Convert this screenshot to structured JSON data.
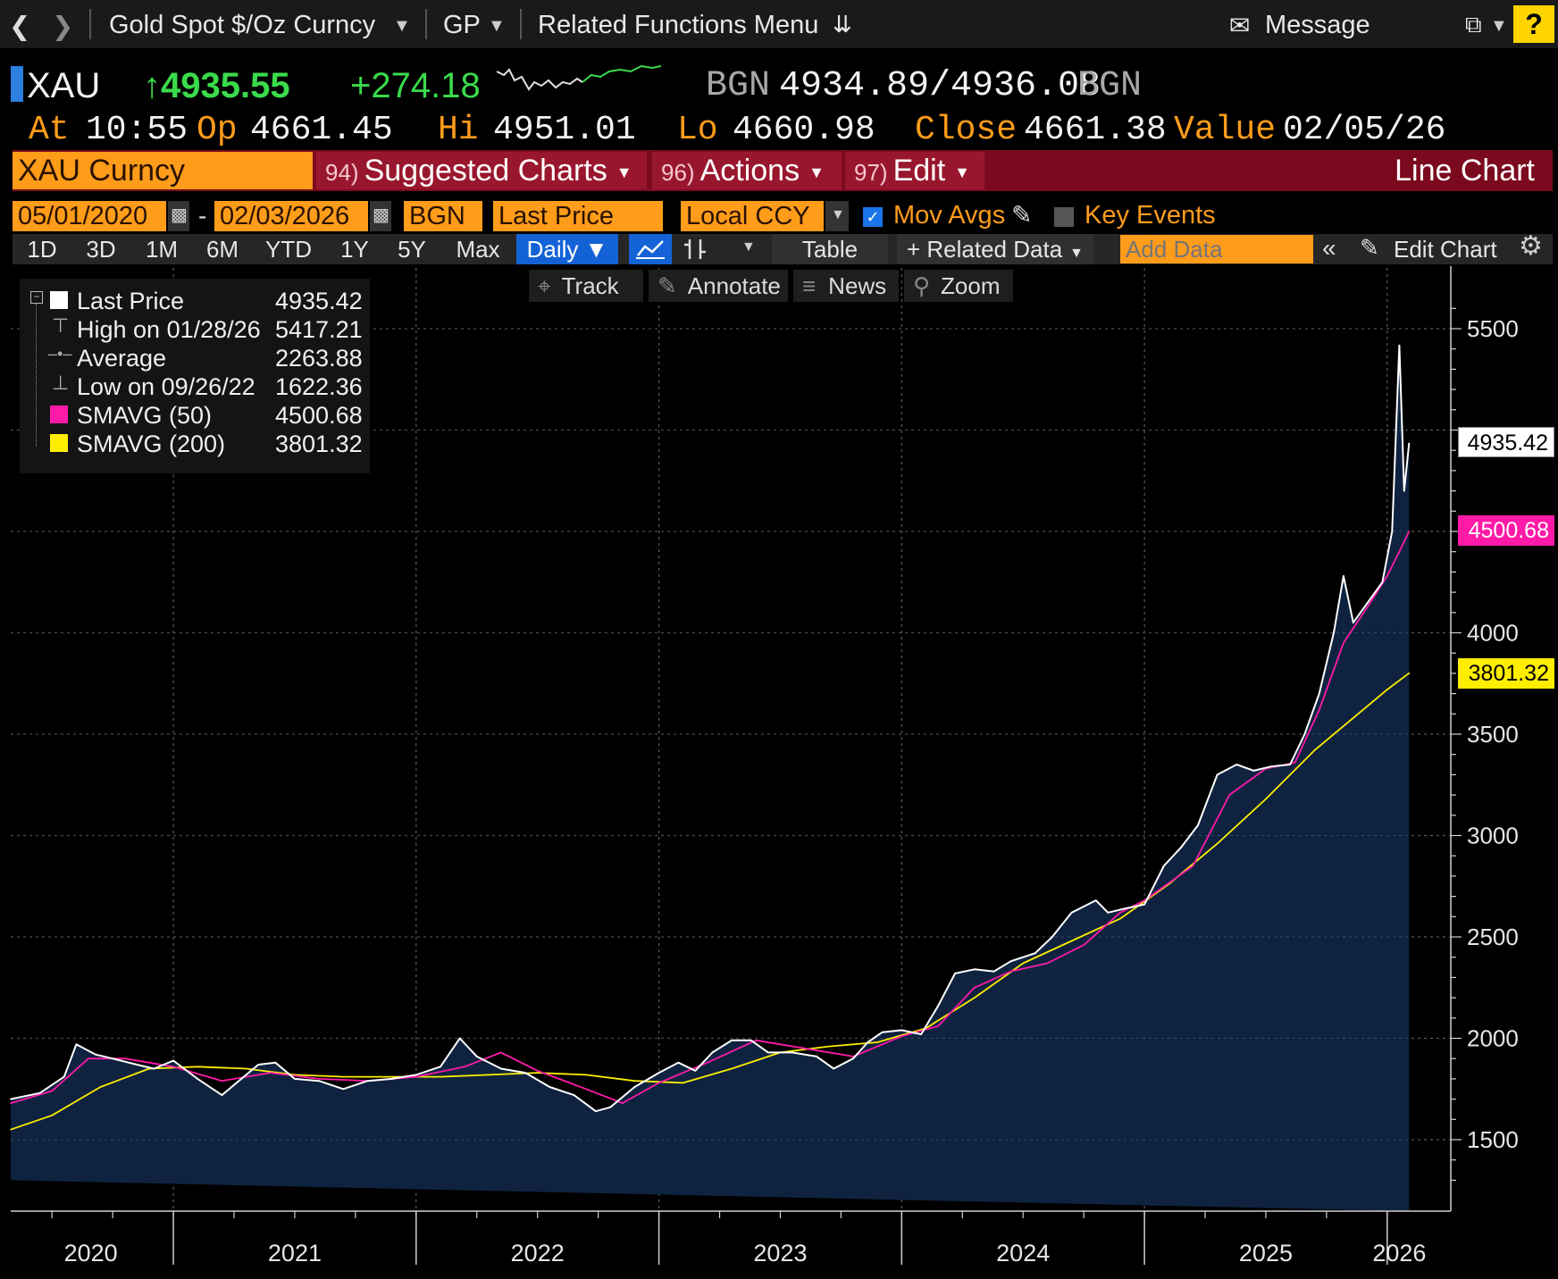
{
  "toolbar": {
    "security": "Gold Spot $/Oz Curncy",
    "market": "GP",
    "related": "Related Functions Menu",
    "message": "Message",
    "help": "?"
  },
  "quote": {
    "symbol": "XAU",
    "last": "↑4935.55",
    "change": "+274.18",
    "bgn_label": "BGN",
    "bid_ask": "4934.89/4936.08",
    "bgn_label2": "BGN",
    "at_label": "At",
    "time": "10:55",
    "op_label": "Op",
    "open": "4661.45",
    "hi_label": "Hi",
    "high": "4951.01",
    "lo_label": "Lo",
    "low": "4660.98",
    "close_label": "Close",
    "close": "4661.38",
    "value_label": "Value",
    "value_date": "02/05/26"
  },
  "menubar": {
    "ticker": "XAU Curncy",
    "suggested_num": "94)",
    "suggested": "Suggested Charts",
    "actions_num": "96)",
    "actions": "Actions",
    "edit_num": "97)",
    "edit": "Edit",
    "chart_type": "Line Chart"
  },
  "fields": {
    "start_date": "05/01/2020",
    "dash": "-",
    "end_date": "02/03/2026",
    "source": "BGN",
    "field": "Last Price",
    "currency": "Local CCY",
    "mov_avgs": "Mov Avgs",
    "key_events": "Key Events"
  },
  "ranges": {
    "items": [
      "1D",
      "3D",
      "1M",
      "6M",
      "YTD",
      "1Y",
      "5Y",
      "Max"
    ],
    "period": "Daily ▼",
    "table": "Table",
    "related_data": "+ Related Data",
    "add_data_placeholder": "Add Data",
    "edit_chart": "Edit Chart"
  },
  "tools": {
    "track": "Track",
    "annotate": "Annotate",
    "news": "News",
    "zoom": "Zoom"
  },
  "legend": {
    "last_label": "Last Price",
    "last_value": "4935.42",
    "high_label": "High on 01/28/26",
    "high_value": "5417.21",
    "avg_label": "Average",
    "avg_value": "2263.88",
    "low_label": "Low on 09/26/22",
    "low_value": "1622.36",
    "sma50_label": "SMAVG (50)",
    "sma50_value": "4500.68",
    "sma200_label": "SMAVG (200)",
    "sma200_value": "3801.32"
  },
  "colors": {
    "price": "#ffffff",
    "area": "#0f2340",
    "sma50": "#ff1aa8",
    "sma200": "#ffee00",
    "accent": "#ff9c1a",
    "menu": "#7b0a1e"
  },
  "chart_data": {
    "type": "line",
    "title": "Gold Spot $/Oz Curncy — Line Chart",
    "xlabel": "",
    "ylabel": "",
    "ylim": [
      1300,
      5700
    ],
    "yticks": [
      "5500",
      "4000",
      "3500",
      "3000",
      "2500",
      "2000",
      "1500"
    ],
    "xticks": [
      "2020",
      "2021",
      "2022",
      "2023",
      "2024",
      "2025",
      "2026"
    ],
    "x_domain": [
      2020.33,
      2026.1
    ],
    "year_boundaries": [
      2021.0,
      2022.0,
      2023.0,
      2024.0,
      2025.0,
      2026.0
    ],
    "series": [
      {
        "name": "Last Price",
        "x": [
          2020.33,
          2020.45,
          2020.55,
          2020.6,
          2020.68,
          2020.75,
          2020.85,
          2020.92,
          2021.0,
          2021.1,
          2021.2,
          2021.25,
          2021.35,
          2021.42,
          2021.5,
          2021.6,
          2021.7,
          2021.8,
          2021.9,
          2022.0,
          2022.1,
          2022.18,
          2022.25,
          2022.35,
          2022.45,
          2022.55,
          2022.65,
          2022.74,
          2022.8,
          2022.9,
          2023.0,
          2023.08,
          2023.15,
          2023.22,
          2023.3,
          2023.38,
          2023.45,
          2023.55,
          2023.65,
          2023.72,
          2023.8,
          2023.86,
          2023.92,
          2024.0,
          2024.08,
          2024.15,
          2024.22,
          2024.3,
          2024.38,
          2024.45,
          2024.55,
          2024.62,
          2024.7,
          2024.8,
          2024.85,
          2024.92,
          2025.0,
          2025.08,
          2025.15,
          2025.22,
          2025.3,
          2025.38,
          2025.45,
          2025.52,
          2025.6,
          2025.66,
          2025.72,
          2025.78,
          2025.82,
          2025.86,
          2025.92,
          2025.98,
          2026.02,
          2026.05,
          2026.07,
          2026.09
        ],
        "values": [
          1700,
          1730,
          1810,
          1970,
          1920,
          1900,
          1870,
          1850,
          1890,
          1800,
          1720,
          1770,
          1870,
          1880,
          1800,
          1790,
          1750,
          1790,
          1800,
          1820,
          1860,
          2000,
          1910,
          1850,
          1830,
          1760,
          1720,
          1640,
          1660,
          1760,
          1830,
          1880,
          1840,
          1930,
          1990,
          1990,
          1930,
          1930,
          1910,
          1850,
          1900,
          1980,
          2030,
          2040,
          2020,
          2160,
          2320,
          2340,
          2330,
          2380,
          2420,
          2500,
          2620,
          2680,
          2620,
          2640,
          2660,
          2850,
          2940,
          3050,
          3300,
          3350,
          3320,
          3340,
          3350,
          3500,
          3700,
          4000,
          4280,
          4050,
          4150,
          4250,
          4500,
          5417,
          4700,
          4935
        ]
      },
      {
        "name": "SMAVG (50)",
        "x": [
          2020.33,
          2020.5,
          2020.65,
          2020.8,
          2021.0,
          2021.2,
          2021.4,
          2021.6,
          2021.8,
          2022.0,
          2022.2,
          2022.35,
          2022.5,
          2022.7,
          2022.85,
          2023.0,
          2023.2,
          2023.4,
          2023.6,
          2023.8,
          2024.0,
          2024.15,
          2024.3,
          2024.45,
          2024.6,
          2024.75,
          2024.9,
          2025.0,
          2025.2,
          2025.35,
          2025.5,
          2025.62,
          2025.72,
          2025.82,
          2025.92,
          2026.0,
          2026.05,
          2026.09
        ],
        "values": [
          1680,
          1740,
          1900,
          1900,
          1860,
          1790,
          1830,
          1800,
          1790,
          1810,
          1860,
          1930,
          1840,
          1750,
          1680,
          1780,
          1880,
          1990,
          1950,
          1910,
          2010,
          2060,
          2250,
          2330,
          2370,
          2460,
          2620,
          2680,
          2850,
          3200,
          3330,
          3360,
          3620,
          3950,
          4130,
          4280,
          4400,
          4500
        ]
      },
      {
        "name": "SMAVG (200)",
        "x": [
          2020.33,
          2020.5,
          2020.7,
          2020.9,
          2021.1,
          2021.3,
          2021.5,
          2021.7,
          2021.9,
          2022.1,
          2022.3,
          2022.5,
          2022.7,
          2022.9,
          2023.1,
          2023.3,
          2023.5,
          2023.7,
          2023.9,
          2024.1,
          2024.3,
          2024.5,
          2024.7,
          2024.9,
          2025.1,
          2025.3,
          2025.5,
          2025.7,
          2025.9,
          2026.0,
          2026.09
        ],
        "values": [
          1550,
          1620,
          1760,
          1850,
          1860,
          1850,
          1820,
          1810,
          1810,
          1810,
          1820,
          1830,
          1820,
          1790,
          1780,
          1850,
          1930,
          1960,
          1980,
          2050,
          2200,
          2370,
          2480,
          2590,
          2760,
          2960,
          3180,
          3420,
          3620,
          3720,
          3801
        ]
      }
    ]
  }
}
